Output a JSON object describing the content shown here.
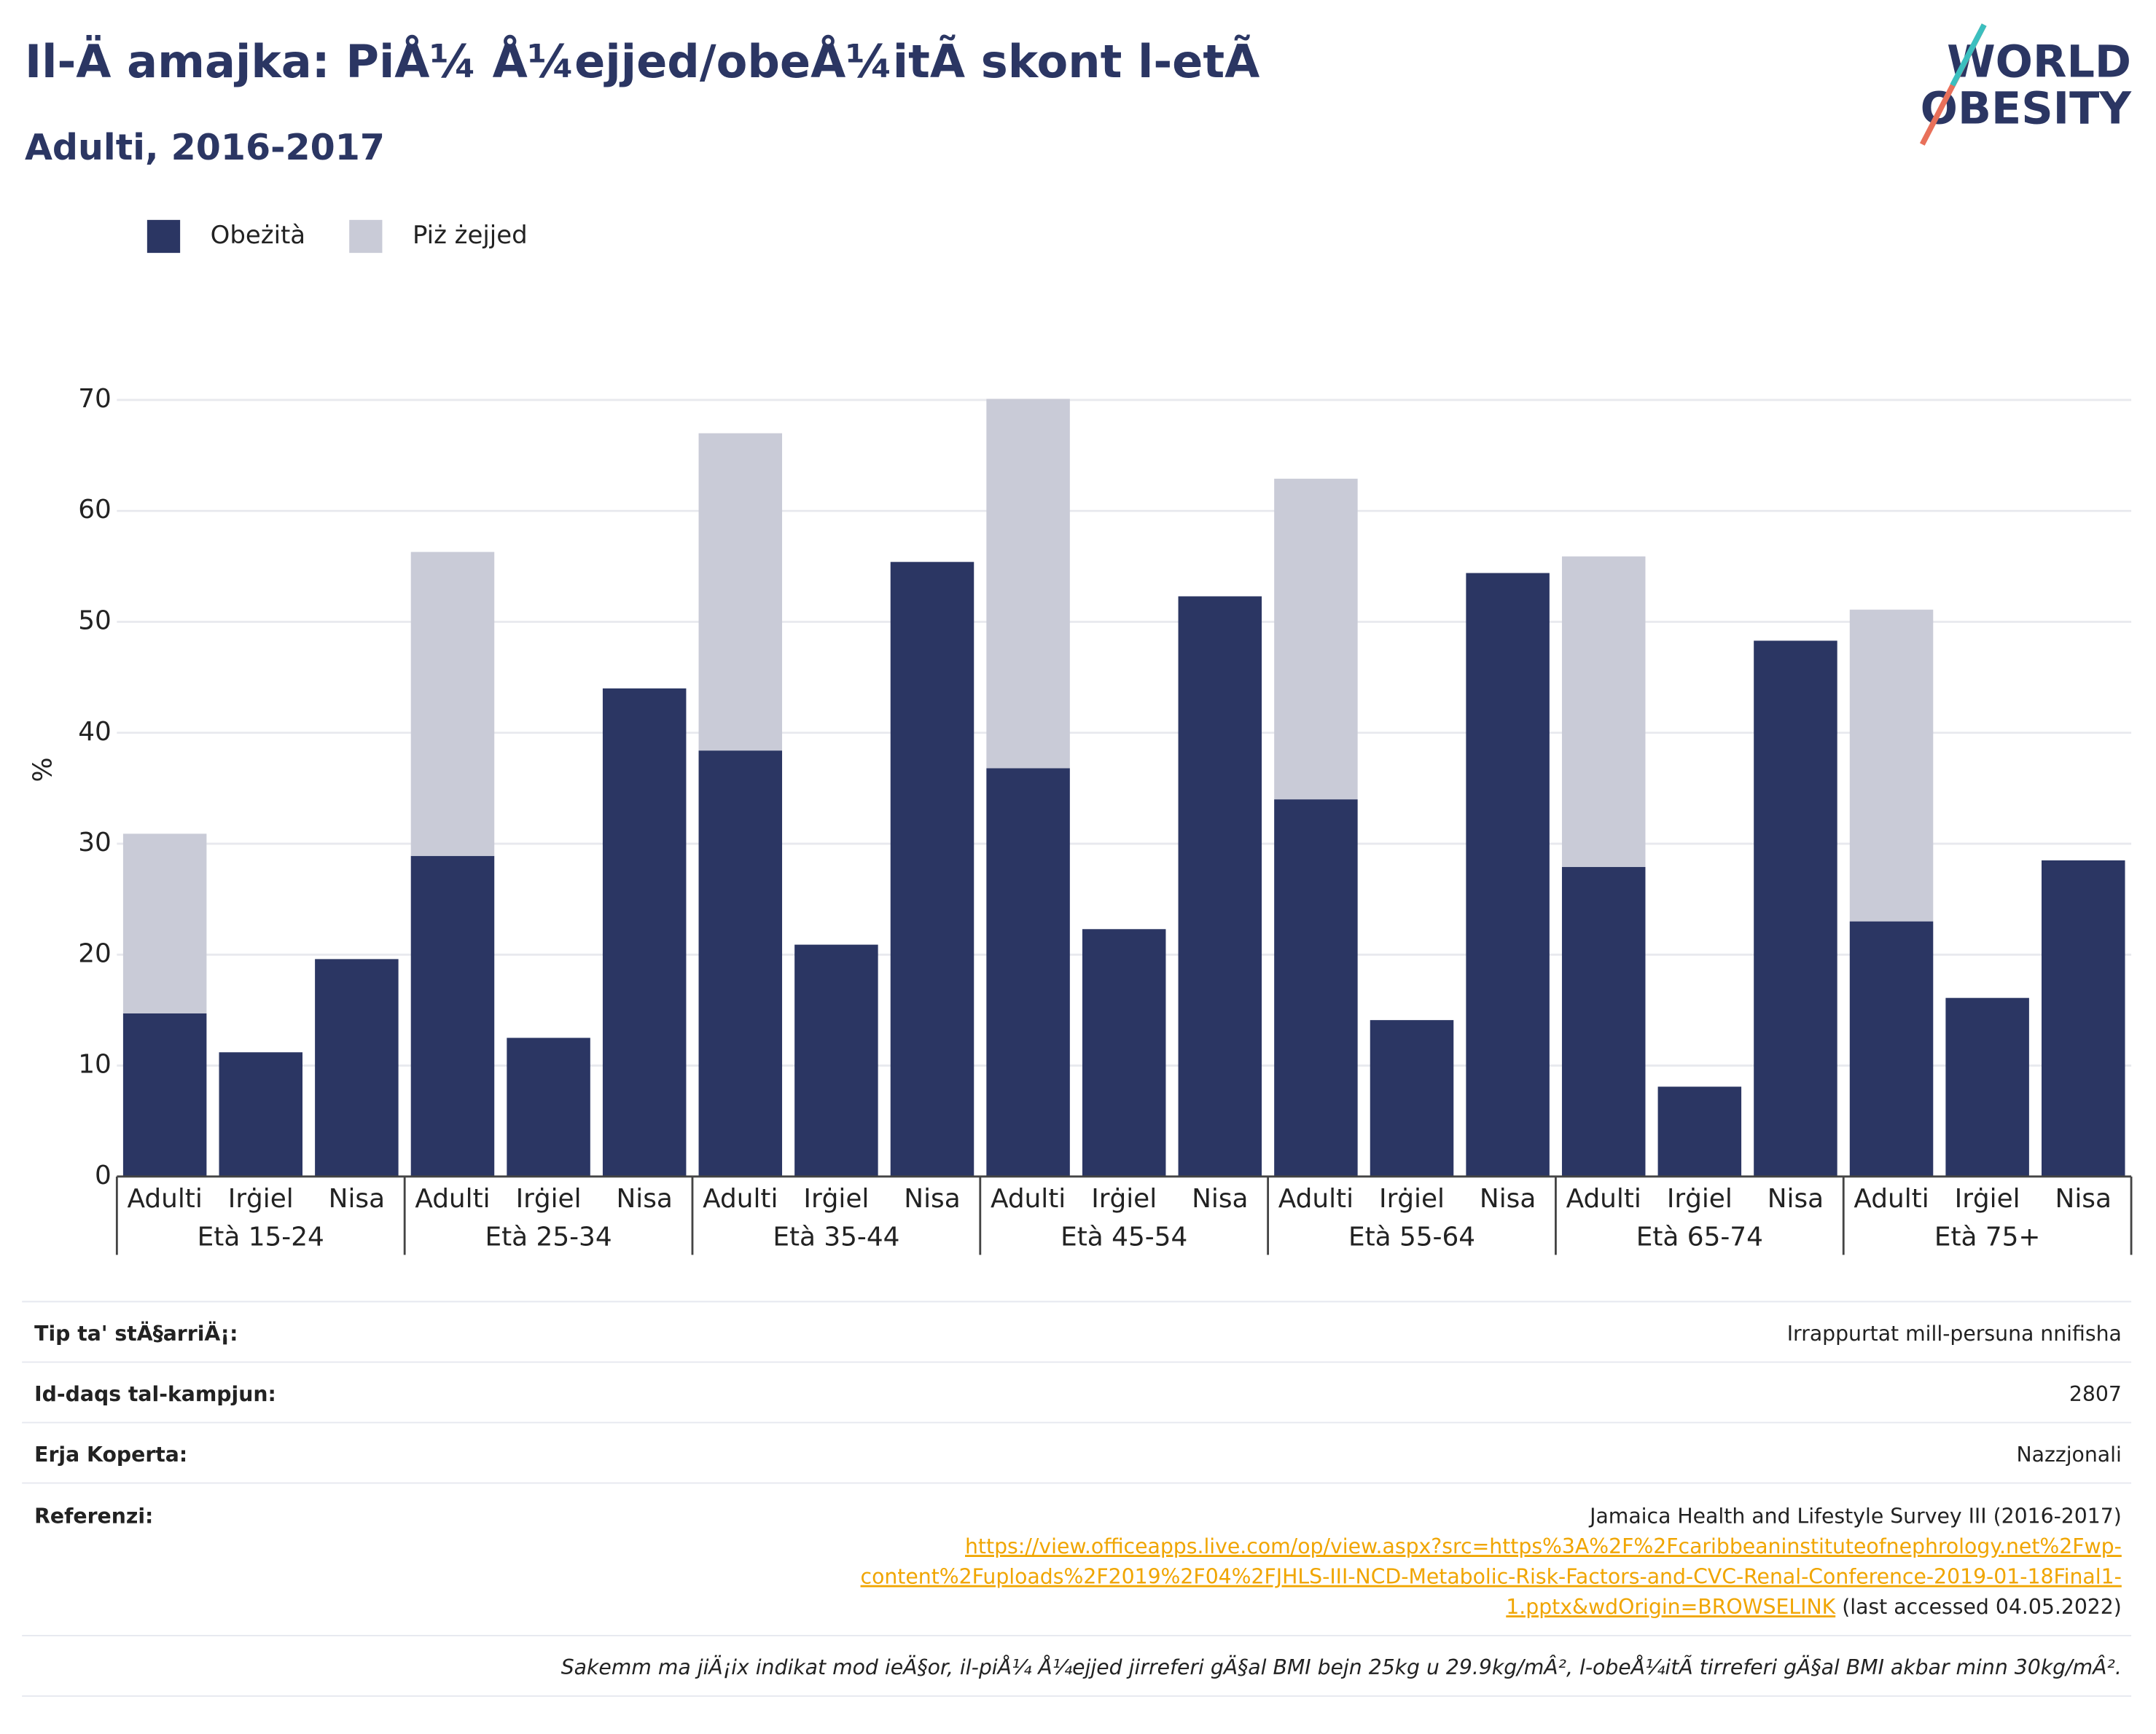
{
  "chart_data": {
    "type": "bar",
    "stacked": true,
    "title": "Il-Ä amajka: PiÅ¼ Å¼ejjed/obeÅ¼itÃ  skont l-etÃ",
    "subtitle": "Adulti, 2016-2017",
    "ylabel": "%",
    "groups": [
      "Età 15-24",
      "Età 25-34",
      "Età 35-44",
      "Età 45-54",
      "Età 55-64",
      "Età 65-74",
      "Età 75+"
    ],
    "categories": [
      "Adulti",
      "Irġiel",
      "Nisa",
      "Adulti",
      "Irġiel",
      "Nisa",
      "Adulti",
      "Irġiel",
      "Nisa",
      "Adulti",
      "Irġiel",
      "Nisa",
      "Adulti",
      "Irġiel",
      "Nisa",
      "Adulti",
      "Irġiel",
      "Nisa",
      "Adulti",
      "Irġiel",
      "Nisa"
    ],
    "series": [
      {
        "name": "Obeżità",
        "color": "#2b3663",
        "values": [
          14.7,
          11.2,
          19.6,
          28.9,
          12.5,
          44.0,
          38.4,
          20.9,
          55.4,
          36.8,
          22.3,
          52.3,
          34.0,
          14.1,
          54.4,
          27.9,
          8.1,
          48.3,
          23.0,
          16.1,
          28.5
        ]
      },
      {
        "name": "Piż żejjed",
        "color": "#c9cbd7",
        "values": [
          16.2,
          null,
          null,
          27.4,
          null,
          null,
          28.6,
          null,
          null,
          33.3,
          null,
          null,
          28.9,
          null,
          null,
          28.0,
          null,
          null,
          28.1,
          null,
          null
        ]
      }
    ],
    "ylim": [
      0,
      70
    ],
    "yticks": [
      0,
      10,
      20,
      30,
      40,
      50,
      60,
      70
    ],
    "grid": true,
    "legend": "top-left"
  },
  "logo": {
    "line1": "WORLD",
    "line2": "OBESITY"
  },
  "table": {
    "rows": [
      [
        "Tip ta' stÄ§arriÄ¡:",
        "Irrappurtat mill-persuna nnifisha"
      ],
      [
        "Id-daqs tal-kampjun:",
        "2807"
      ],
      [
        "Erja Koperta:",
        "Nazzjonali"
      ]
    ],
    "references": {
      "label": "Referenzi:",
      "text": "Jamaica Health and Lifestyle Survey III (2016-2017)",
      "link": [
        "https://view.officeapps.live.com/op/view.aspx?src=https%3A%2F%2Fcaribbeaninstituteofnephrology.net%2Fwp-",
        "content%2Fuploads%2F2019%2F04%2FJHLS-III-NCD-Metabolic-Risk-Factors-and-CVC-Renal-Conference-2019-01-18Final1-",
        "1.pptx&wdOrigin=BROWSELINK"
      ],
      "note": " (last accessed 04.05.2022)"
    },
    "footnote": "Sakemm ma jiÄ¡ix indikat mod ieÄ§or, il-piÅ¼ Å¼ejjed jirreferi gÄ§al BMI bejn 25kg u 29.9kg/mÂ², l-obeÅ¼itÃ  tirreferi gÄ§al BMI akbar minn 30kg/mÂ²."
  }
}
